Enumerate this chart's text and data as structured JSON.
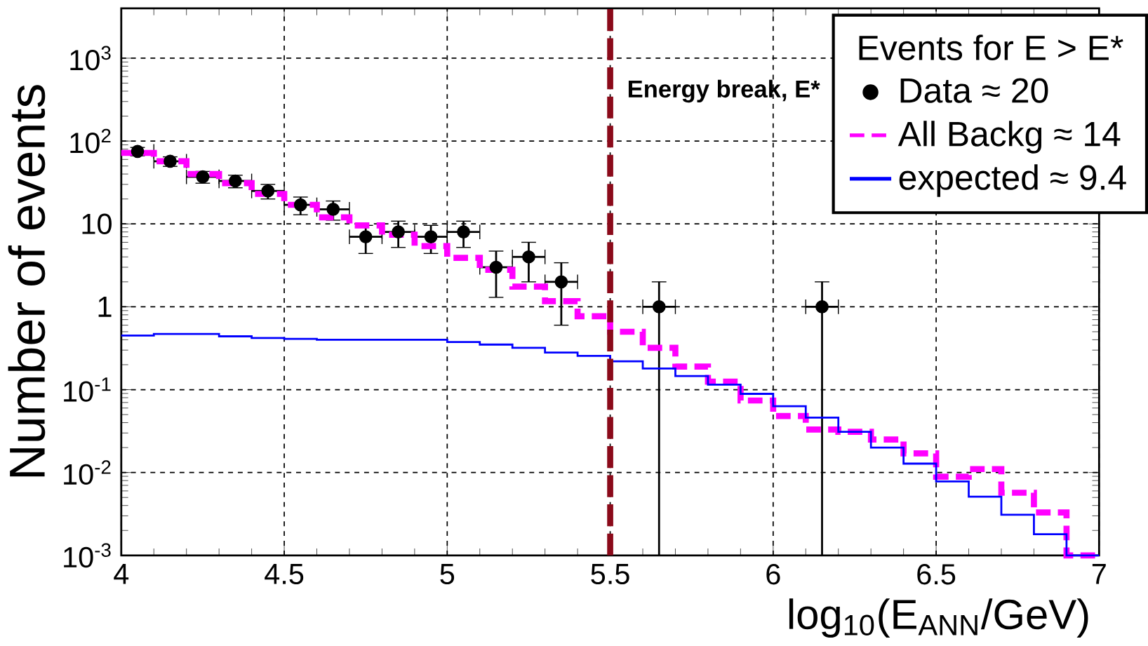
{
  "chart_data": {
    "type": "histogram",
    "xlabel": "log$_{10}$(E$_{ANN}$/GeV)",
    "ylabel": "Number of events",
    "legend_title": "Events for E > E*",
    "bins": [
      4.0,
      4.1,
      4.2,
      4.3,
      4.4,
      4.5,
      4.6,
      4.7,
      4.8,
      4.9,
      5.0,
      5.1,
      5.2,
      5.3,
      5.4,
      5.5,
      5.6,
      5.7,
      5.8,
      5.9,
      6.0,
      6.1,
      6.2,
      6.3,
      6.4,
      6.5,
      6.6,
      6.7,
      6.8,
      6.9,
      7.0
    ],
    "series": [
      {
        "name": "Data ≈ 20",
        "type": "scatter",
        "color": "#000000",
        "marker": "circle",
        "x": [
          4.05,
          4.15,
          4.25,
          4.35,
          4.45,
          4.55,
          4.65,
          4.75,
          4.85,
          4.95,
          5.05,
          5.15,
          5.25,
          5.35,
          5.65,
          6.15
        ],
        "values": [
          75,
          57,
          37,
          33,
          25,
          17,
          15,
          7,
          8,
          7,
          8,
          3,
          4,
          2,
          1,
          1
        ],
        "errors": [
          8.7,
          7.5,
          6,
          5.7,
          5,
          4.1,
          3.9,
          2.6,
          2.8,
          2.6,
          2.8,
          1.7,
          2,
          1.4,
          [
            0.001,
            2
          ],
          [
            0.001,
            2
          ]
        ],
        "xerrors": [
          0.05,
          0.05,
          0.05,
          0.05,
          0.05,
          0.05,
          0.05,
          0.05,
          0.05,
          0.05,
          0.05,
          0.05,
          0.05,
          0.05,
          0.05,
          0.05
        ]
      },
      {
        "name": "All Backg ≈ 14",
        "type": "histogram",
        "color": "#ff00ff",
        "line_style": "dashed",
        "values": [
          72,
          57,
          40,
          31,
          23,
          17,
          12,
          9.6,
          7.4,
          5.4,
          3.9,
          2.8,
          1.75,
          1.17,
          0.77,
          0.5,
          0.32,
          0.19,
          0.125,
          0.074,
          0.048,
          0.033,
          0.031,
          0.025,
          0.017,
          0.0089,
          0.011,
          0.0057,
          0.0033,
          0.001
        ]
      },
      {
        "name": "expected ≈  9.4",
        "type": "histogram",
        "color": "#0000ff",
        "line_style": "solid",
        "values": [
          0.45,
          0.47,
          0.47,
          0.44,
          0.42,
          0.41,
          0.4,
          0.4,
          0.4,
          0.4,
          0.375,
          0.35,
          0.32,
          0.28,
          0.256,
          0.22,
          0.18,
          0.146,
          0.115,
          0.089,
          0.063,
          0.046,
          0.031,
          0.02,
          0.0128,
          0.0078,
          0.0051,
          0.0031,
          0.0018,
          0.001
        ]
      }
    ],
    "ref_lines": [
      {
        "axis": "x",
        "value": 5.5,
        "label": "Energy break,  E*",
        "color": "#8b0a1a",
        "line_style": "dashed"
      }
    ],
    "log": "y",
    "grid": true,
    "legend": "top right",
    "xlim": [
      4,
      7
    ],
    "xticks": [
      4,
      4.5,
      5,
      5.5,
      6,
      6.5,
      7
    ],
    "ylim": [
      0.001,
      4000
    ],
    "yticks": [
      {
        "value": 0.001,
        "label": "10$^{-3}$"
      },
      {
        "value": 0.01,
        "label": "10$^{-2}$"
      },
      {
        "value": 0.1,
        "label": "10$^{-1}$"
      },
      {
        "value": 1,
        "label": "1"
      },
      {
        "value": 10,
        "label": "10"
      },
      {
        "value": 100,
        "label": "10$^{2}$"
      },
      {
        "value": 1000,
        "label": "10$^{3}$"
      }
    ]
  }
}
